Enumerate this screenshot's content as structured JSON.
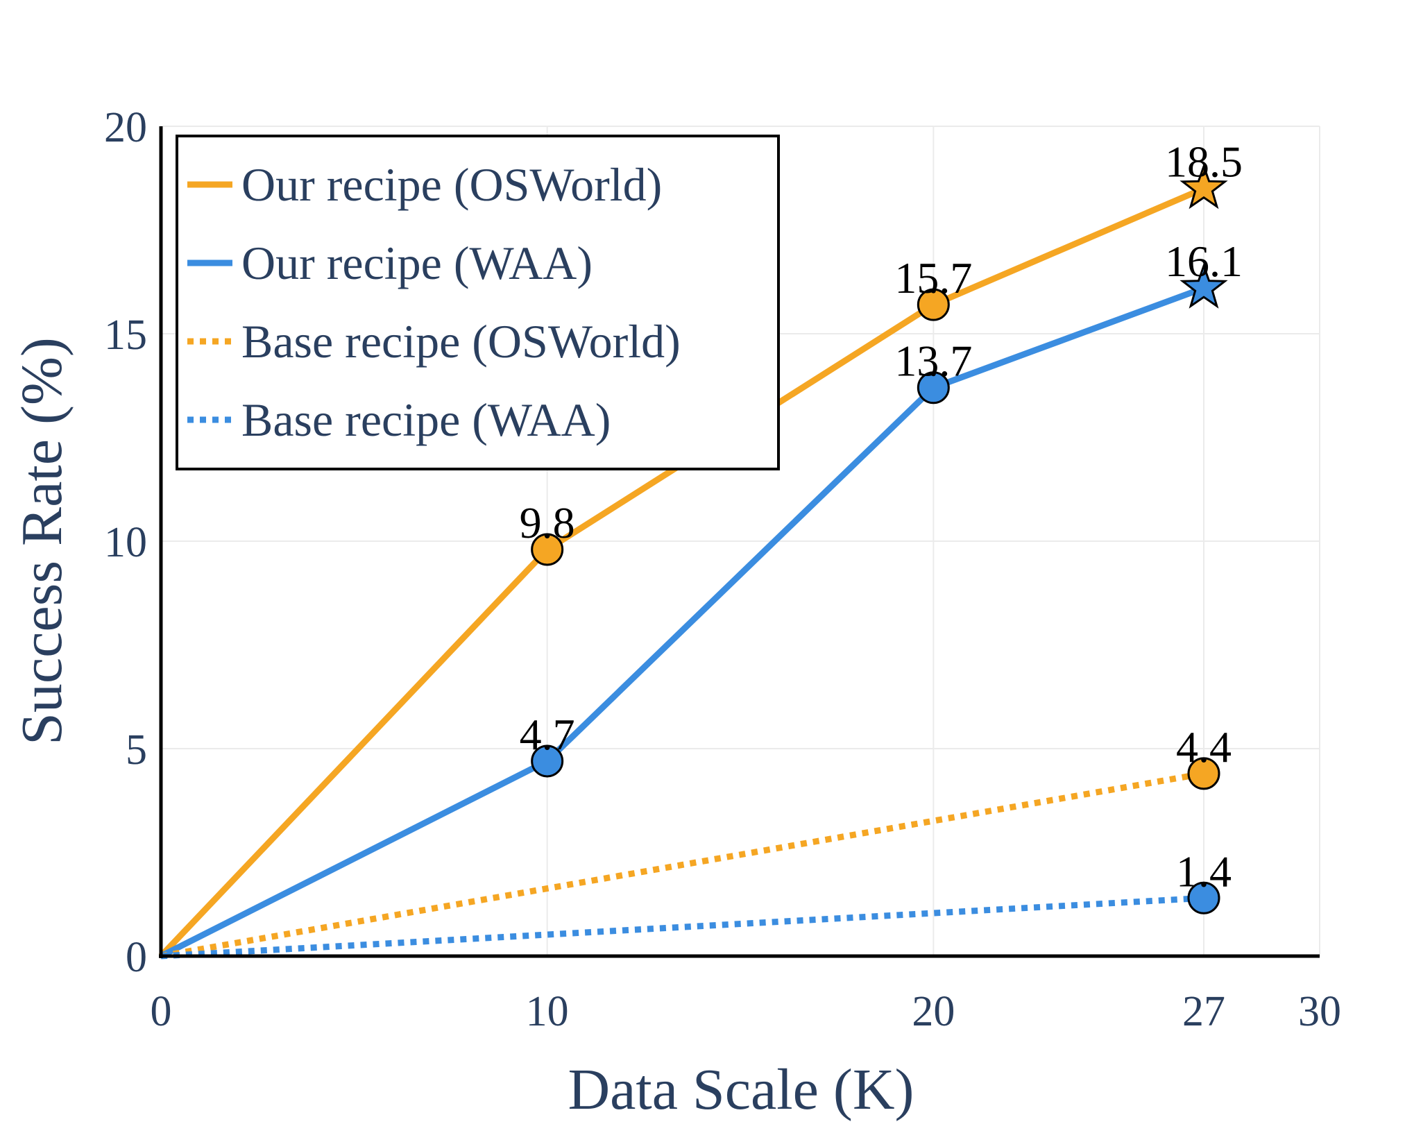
{
  "chart_data": {
    "type": "line",
    "xlabel": "Data Scale (K)",
    "ylabel": "Success Rate (%)",
    "xlim": [
      0,
      30
    ],
    "ylim": [
      0,
      20
    ],
    "xticks": [
      0,
      10,
      20,
      27,
      30
    ],
    "yticks": [
      0,
      5,
      10,
      15,
      20
    ],
    "grid": true,
    "legend_position": "top-left",
    "colors": {
      "orange": "#f5a623",
      "blue": "#3b8de0",
      "text": "#2a3f5f"
    },
    "series": [
      {
        "name": "Our recipe (OSWorld)",
        "color": "#f5a623",
        "dash": "solid",
        "x": [
          0,
          10,
          20,
          27
        ],
        "y": [
          0,
          9.8,
          15.7,
          18.5
        ],
        "markers": [
          "none",
          "circle",
          "circle",
          "star"
        ],
        "labels": [
          "",
          "9.8",
          "15.7",
          "18.5"
        ]
      },
      {
        "name": "Our recipe (WAA)",
        "color": "#3b8de0",
        "dash": "solid",
        "x": [
          0,
          10,
          20,
          27
        ],
        "y": [
          0,
          4.7,
          13.7,
          16.1
        ],
        "markers": [
          "none",
          "circle",
          "circle",
          "star"
        ],
        "labels": [
          "",
          "4.7",
          "13.7",
          "16.1"
        ]
      },
      {
        "name": "Base recipe (OSWorld)",
        "color": "#f5a623",
        "dash": "dot",
        "x": [
          0,
          27
        ],
        "y": [
          0,
          4.4
        ],
        "markers": [
          "none",
          "circle"
        ],
        "labels": [
          "",
          "4.4"
        ]
      },
      {
        "name": "Base recipe (WAA)",
        "color": "#3b8de0",
        "dash": "dot",
        "x": [
          0,
          27
        ],
        "y": [
          0,
          1.4
        ],
        "markers": [
          "none",
          "circle"
        ],
        "labels": [
          "",
          "1.4"
        ]
      }
    ]
  }
}
